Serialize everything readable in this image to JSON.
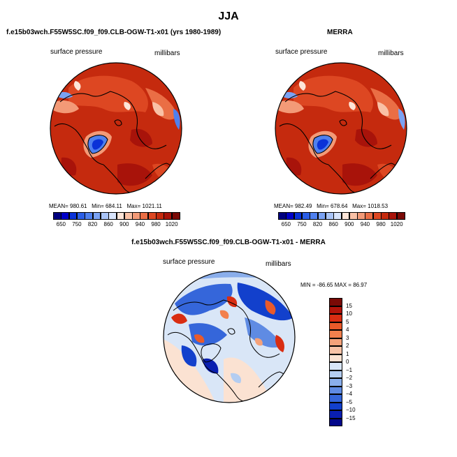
{
  "figure": {
    "title": "JJA",
    "panel_top_left": {
      "title": "f.e15b03wch.F55W5SC.f09_f09.CLB-OGW-T1-x01 (yrs 1980-1989)",
      "left_label": "surface pressure",
      "right_label": "millibars",
      "mean": "980.61",
      "min": "684.11",
      "max": "1021.11"
    },
    "panel_top_right": {
      "title": "MERRA",
      "left_label": "surface pressure",
      "right_label": "millibars",
      "mean": "982.49",
      "min": "678.64",
      "max": "1018.53"
    },
    "panel_bottom": {
      "title": "f.e15b03wch.F55W5SC.f09_f09.CLB-OGW-T1-x01 - MERRA",
      "left_label": "surface pressure",
      "right_label": "millibars",
      "min": "-86.65",
      "max": "86.97"
    },
    "stat_labels": {
      "mean": "MEAN=",
      "min": "Min=",
      "max": "Max=",
      "min_upper": "MIN =",
      "max_upper": "MAX ="
    }
  },
  "chart_data": [
    {
      "type": "heatmap",
      "projection": "polar stereographic (north pole)",
      "title": "f.e15b03wch.F55W5SC.f09_f09.CLB-OGW-T1-x01 (yrs 1980-1989)",
      "variable": "surface pressure",
      "units": "millibars",
      "stats": {
        "mean": 980.61,
        "min": 684.11,
        "max": 1021.11
      },
      "colorbar": {
        "orientation": "horizontal",
        "levels": [
          650,
          700,
          750,
          800,
          820,
          840,
          860,
          880,
          900,
          920,
          940,
          960,
          980,
          1000,
          1020
        ],
        "tick_labels": [
          "650",
          "750",
          "820",
          "860",
          "900",
          "940",
          "980",
          "1020"
        ],
        "colors": [
          "#00007f",
          "#0000c8",
          "#0a32d8",
          "#2b5ee6",
          "#4f80ee",
          "#7aa2f3",
          "#a9c4f7",
          "#d8e4fb",
          "#fde5d8",
          "#f9c1a6",
          "#f39a77",
          "#ea6e45",
          "#dd4722",
          "#c52a0e",
          "#a8130a",
          "#7a0a06"
        ]
      }
    },
    {
      "type": "heatmap",
      "projection": "polar stereographic (north pole)",
      "title": "MERRA",
      "variable": "surface pressure",
      "units": "millibars",
      "stats": {
        "mean": 982.49,
        "min": 678.64,
        "max": 1018.53
      },
      "colorbar": {
        "orientation": "horizontal",
        "levels": [
          650,
          700,
          750,
          800,
          820,
          840,
          860,
          880,
          900,
          920,
          940,
          960,
          980,
          1000,
          1020
        ],
        "tick_labels": [
          "650",
          "750",
          "820",
          "860",
          "900",
          "940",
          "980",
          "1020"
        ],
        "colors": [
          "#00007f",
          "#0000c8",
          "#0a32d8",
          "#2b5ee6",
          "#4f80ee",
          "#7aa2f3",
          "#a9c4f7",
          "#d8e4fb",
          "#fde5d8",
          "#f9c1a6",
          "#f39a77",
          "#ea6e45",
          "#dd4722",
          "#c52a0e",
          "#a8130a",
          "#7a0a06"
        ]
      }
    },
    {
      "type": "heatmap",
      "projection": "polar stereographic (north pole)",
      "title": "f.e15b03wch.F55W5SC.f09_f09.CLB-OGW-T1-x01 - MERRA",
      "variable": "surface pressure",
      "units": "millibars",
      "stats": {
        "min": -86.65,
        "max": 86.97
      },
      "colorbar": {
        "orientation": "vertical",
        "tick_labels": [
          "15",
          "10",
          "5",
          "4",
          "3",
          "2",
          "1",
          "0",
          "−1",
          "−2",
          "−3",
          "−4",
          "−5",
          "−10",
          "−15"
        ],
        "colors": [
          "#7a0a06",
          "#b3140a",
          "#d92d12",
          "#ea5a2a",
          "#f2804d",
          "#f5a27a",
          "#f8c2a6",
          "#fbe2d2",
          "#d9e6f7",
          "#b4cdf1",
          "#8aaeeb",
          "#5f8be3",
          "#3566da",
          "#1240cc",
          "#0a1fb0",
          "#03078a"
        ]
      }
    }
  ]
}
